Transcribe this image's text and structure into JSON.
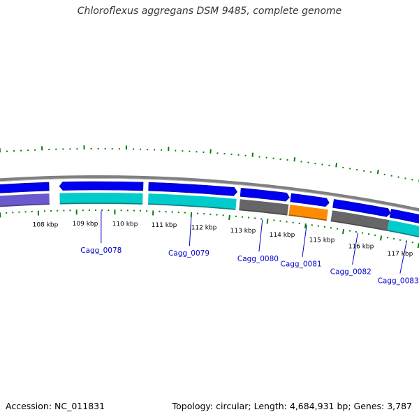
{
  "title": "Chloroflexus aggregans DSM 9485, complete genome",
  "footer": {
    "accession": "Accession: NC_011831",
    "summary": "Topology: circular; Length: 4,684,931 bp; Genes: 3,787"
  },
  "colors": {
    "backbone": "#808080",
    "cds": "#0000ee",
    "cyan": "#00cccc",
    "gray": "#666666",
    "orange": "#ff8c00",
    "purple": "#6a5acd",
    "ticks": "#008000",
    "label": "#0000cc"
  },
  "ruler": [
    "108 kbp",
    "109 kbp",
    "110 kbp",
    "111 kbp",
    "112 kbp",
    "113 kbp",
    "114 kbp",
    "115 kbp",
    "116 kbp",
    "117 kbp"
  ],
  "genes": [
    {
      "label": "",
      "color": "purple"
    },
    {
      "label": "Cagg_0078",
      "color": "cyan"
    },
    {
      "label": "Cagg_0079",
      "color": "cyan"
    },
    {
      "label": "Cagg_0080",
      "color": "gray"
    },
    {
      "label": "Cagg_0081",
      "color": "orange"
    },
    {
      "label": "Cagg_0082",
      "color": "gray"
    },
    {
      "label": "Cagg_0083",
      "color": "cyan"
    }
  ]
}
